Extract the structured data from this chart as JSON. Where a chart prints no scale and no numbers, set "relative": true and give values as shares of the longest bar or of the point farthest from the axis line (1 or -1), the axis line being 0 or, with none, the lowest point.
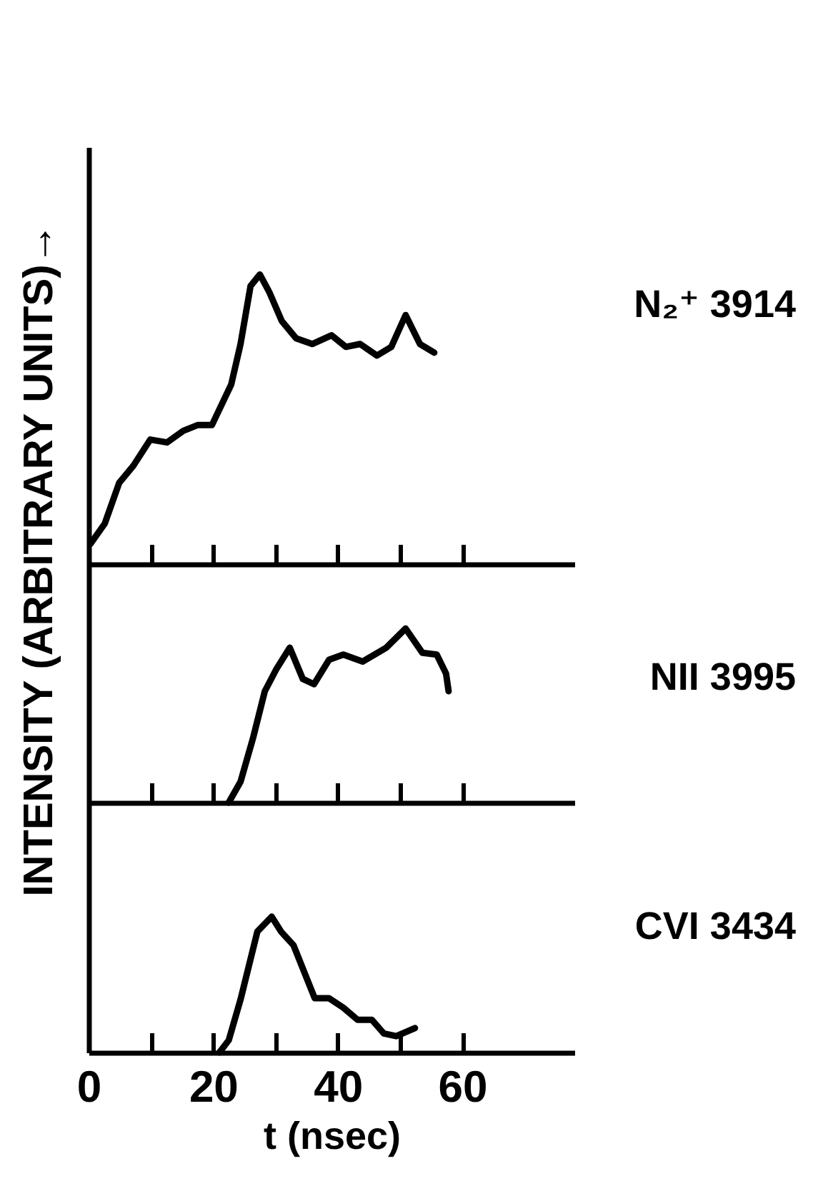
{
  "chart_data": [
    {
      "type": "line",
      "relative": true,
      "tick_labels": false,
      "xlim": [
        0,
        78
      ],
      "xticks": [
        {
          "value": 10,
          "label": null
        },
        20,
        {
          "value": 30,
          "label": null
        },
        40,
        {
          "value": 50,
          "label": null
        },
        60
      ],
      "x": [
        0.3,
        2.6,
        4.9,
        7.2,
        9.9,
        12.6,
        15.2,
        17.5,
        19.8,
        22.9,
        24.4,
        26,
        27.5,
        29,
        31,
        33.3,
        35.9,
        39,
        41.3,
        43.6,
        46.3,
        48.6,
        50.9,
        53.2,
        55.5
      ],
      "series": [
        {
          "name": "N₂⁺ 3914",
          "color": "#000000",
          "values": [
            0.07,
            0.14,
            0.28,
            0.34,
            0.43,
            0.42,
            0.46,
            0.48,
            0.48,
            0.62,
            0.76,
            0.96,
            1,
            0.94,
            0.84,
            0.78,
            0.76,
            0.79,
            0.75,
            0.76,
            0.72,
            0.75,
            0.86,
            0.76,
            0.73
          ]
        }
      ]
    },
    {
      "type": "line",
      "relative": true,
      "tick_labels": false,
      "ylabel": "INTENSITY (ARBITRARY UNITS)→",
      "xlim": [
        0,
        78
      ],
      "xticks": [
        {
          "value": 10,
          "label": null
        },
        20,
        {
          "value": 30,
          "label": null
        },
        40,
        {
          "value": 50,
          "label": null
        },
        60
      ],
      "x": [
        22.5,
        24.4,
        26.4,
        28.3,
        30.2,
        32.3,
        34.4,
        36.2,
        38.6,
        40.9,
        44,
        47.8,
        50.9,
        53.6,
        55.9,
        57.4,
        57.8
      ],
      "series": [
        {
          "name": "NII 3995",
          "color": "#000000",
          "values": [
            0,
            0.12,
            0.37,
            0.64,
            0.77,
            0.89,
            0.71,
            0.68,
            0.82,
            0.85,
            0.81,
            0.89,
            1,
            0.86,
            0.85,
            0.74,
            0.64
          ]
        }
      ]
    },
    {
      "type": "line",
      "relative": true,
      "tick_labels": "x",
      "xlabel": "t (nsec)",
      "xlim": [
        0,
        78
      ],
      "xticks": [
        0,
        {
          "value": 10,
          "label": null
        },
        20,
        {
          "value": 30,
          "label": null
        },
        40,
        {
          "value": 50,
          "label": null
        },
        60
      ],
      "x": [
        21,
        22.5,
        24.4,
        27.1,
        29.4,
        30.9,
        32.9,
        36.3,
        38.6,
        40.9,
        43.2,
        45.5,
        47.4,
        49.4,
        52.4
      ],
      "series": [
        {
          "name": "CVI 3434",
          "color": "#000000",
          "values": [
            0,
            0.09,
            0.39,
            0.89,
            1,
            0.89,
            0.79,
            0.4,
            0.4,
            0.33,
            0.24,
            0.24,
            0.14,
            0.12,
            0.18
          ]
        }
      ]
    }
  ]
}
